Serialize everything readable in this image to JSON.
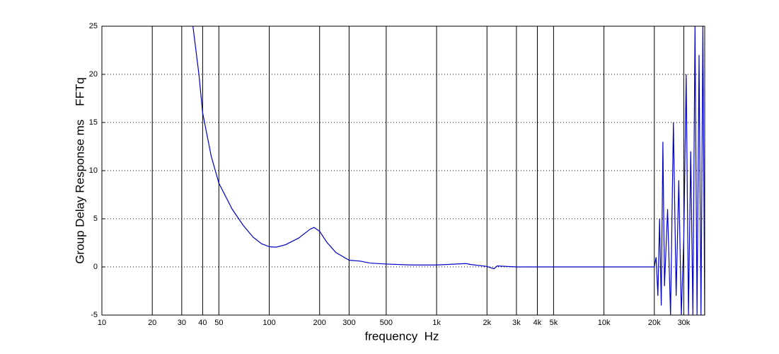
{
  "chart_data": {
    "type": "line",
    "x_label": "frequency  Hz",
    "y_label": "Group Delay Response ms    FFTq",
    "x": [
      35,
      38,
      40,
      45,
      50,
      60,
      70,
      80,
      90,
      100,
      110,
      125,
      150,
      175,
      185,
      200,
      220,
      250,
      300,
      350,
      400,
      500,
      700,
      1000,
      1500,
      1600,
      2000,
      2200,
      2300,
      3000,
      5000,
      10000,
      20000,
      20500,
      21000,
      21500,
      22000,
      22500,
      23000,
      24000,
      25000,
      26000,
      27000,
      28000,
      29000,
      30000,
      31000,
      32000,
      33000,
      34000,
      35000,
      36000,
      37000,
      38000,
      39000,
      40000
    ],
    "values": [
      25,
      20,
      16,
      11.5,
      8.7,
      6.0,
      4.3,
      3.1,
      2.4,
      2.1,
      2.05,
      2.3,
      3.0,
      3.9,
      4.1,
      3.7,
      2.6,
      1.5,
      0.7,
      0.6,
      0.4,
      0.3,
      0.2,
      0.2,
      0.35,
      0.25,
      0.05,
      -0.2,
      0.1,
      0,
      0,
      0,
      0,
      1,
      -3,
      5,
      -4,
      13,
      -2,
      6,
      -5,
      15,
      -3,
      9,
      -5,
      3,
      20,
      -5,
      12,
      -5,
      25,
      -5,
      22,
      -5,
      25,
      -5
    ],
    "color": "#0000c8",
    "log_x": true,
    "xlim": [
      10,
      40000
    ],
    "ylim": [
      -5,
      25
    ],
    "xticks": [
      10,
      20,
      30,
      40,
      50,
      100,
      200,
      300,
      500,
      {
        "value": 1000,
        "label": "1k"
      },
      {
        "value": 2000,
        "label": "2k"
      },
      {
        "value": 3000,
        "label": "3k"
      },
      {
        "value": 4000,
        "label": "4k"
      },
      {
        "value": 5000,
        "label": "5k"
      },
      {
        "value": 10000,
        "label": "10k"
      },
      {
        "value": 20000,
        "label": "20k"
      },
      {
        "value": 30000,
        "label": "30k"
      }
    ],
    "yticks": [
      -5,
      0,
      5,
      10,
      15,
      20,
      25
    ],
    "grid": true
  }
}
